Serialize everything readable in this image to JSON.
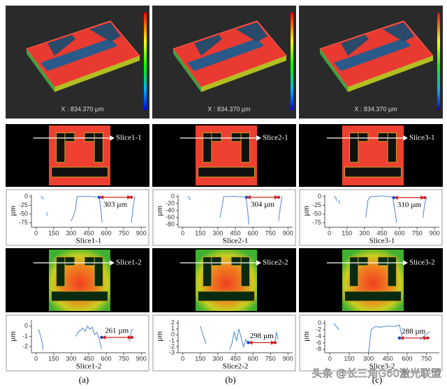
{
  "panels": [
    {
      "label": "(a)",
      "view3d": {
        "x_axis": "X : 834.370 µm"
      },
      "slice1": {
        "label": "Slice1-1"
      },
      "plot1": {
        "ylabel": "µm",
        "xlabel": "Slice1-1",
        "xlim": [
          -40,
          940
        ],
        "ylim": [
          -88,
          6
        ],
        "xticks": [
          0,
          150,
          300,
          450,
          600,
          750,
          900
        ],
        "yticks": [
          0,
          -25,
          -50,
          -75
        ],
        "profile": {
          "x": [
            40,
            55,
            62,
            null,
            90,
            95,
            null,
            300,
            320,
            335,
            350,
            450,
            540,
            555,
            565,
            null,
            815,
            830,
            845
          ],
          "y": [
            0,
            -2,
            -8,
            null,
            -45,
            -55,
            null,
            -70,
            -55,
            -40,
            0,
            1,
            -2,
            -40,
            -75,
            null,
            -75,
            -30,
            0
          ]
        },
        "arrow": {
          "x": [
            540,
            815
          ],
          "y": -2
        },
        "annotation": "303 µm"
      },
      "slice2": {
        "label": "Slice1-2"
      },
      "plot2": {
        "ylabel": "µm",
        "xlabel": "Slice1-2",
        "xlim": [
          -40,
          940
        ],
        "ylim": [
          -2.6,
          0.6
        ],
        "xticks": [
          0,
          150,
          300,
          450,
          600,
          750,
          900
        ],
        "yticks": [
          0,
          -1,
          -2
        ],
        "profile": {
          "x": [
            20,
            35,
            50,
            60,
            null,
            340,
            360,
            380,
            400,
            420,
            440,
            460,
            480,
            500,
            520,
            540,
            560,
            null,
            800,
            815,
            830
          ],
          "y": [
            -0.3,
            -0.8,
            -1.5,
            -2.3,
            null,
            -1.0,
            -0.6,
            -0.4,
            -0.2,
            -0.5,
            0.0,
            -0.3,
            -0.1,
            -0.8,
            -0.6,
            -1.3,
            -2.2,
            null,
            -1.5,
            -0.4,
            -0.3
          ]
        },
        "arrow": {
          "x": [
            560,
            820
          ],
          "y": -1.1
        },
        "annotation": "261 µm"
      }
    },
    {
      "label": "(b)",
      "view3d": {
        "x_axis": "X : 834.370 µm"
      },
      "slice1": {
        "label": "Slice2-1"
      },
      "plot1": {
        "ylabel": "µm",
        "xlabel": "Slice2-1",
        "xlim": [
          -40,
          940
        ],
        "ylim": [
          -88,
          6
        ],
        "xticks": [
          0,
          150,
          300,
          450,
          600,
          750,
          900
        ],
        "yticks": [
          0,
          -20,
          -40,
          -60,
          -80
        ],
        "profile": {
          "x": [
            40,
            55,
            62,
            null,
            320,
            335,
            350,
            450,
            540,
            555,
            565,
            null,
            820,
            835,
            850
          ],
          "y": [
            0,
            -2,
            -10,
            null,
            -60,
            -30,
            0,
            1,
            -2,
            -40,
            -80,
            null,
            -70,
            -30,
            0
          ]
        },
        "arrow": {
          "x": [
            545,
            820
          ],
          "y": -2
        },
        "annotation": "304 µm"
      },
      "slice2": {
        "label": "Slice2-2"
      },
      "plot2": {
        "ylabel": "µm",
        "xlabel": "Slice2-2",
        "xlim": [
          -40,
          940
        ],
        "ylim": [
          -3,
          2.5
        ],
        "xticks": [
          0,
          150,
          300,
          450,
          600,
          750,
          900
        ],
        "yticks": [
          2,
          1,
          0,
          -1,
          -2,
          -3
        ],
        "profile": {
          "x": [
            150,
            165,
            180,
            200,
            null,
            400,
            420,
            440,
            460,
            480,
            500,
            520,
            540,
            560,
            null,
            790,
            800,
            815
          ],
          "y": [
            1.5,
            0.5,
            -0.5,
            -1.5,
            null,
            -2.5,
            -1.5,
            0.5,
            -1,
            1,
            -0.5,
            -2,
            -0.8,
            -1.3,
            null,
            -1.2,
            0.5,
            -0.8
          ]
        },
        "arrow": {
          "x": [
            560,
            790
          ],
          "y": -1.3
        },
        "annotation": "298 µm"
      }
    },
    {
      "label": "(c)",
      "view3d": {
        "x_axis": "X : 834.370 µm"
      },
      "slice1": {
        "label": "Slice3-1"
      },
      "plot1": {
        "ylabel": "µm",
        "xlabel": "Slice3-1",
        "xlim": [
          -40,
          940
        ],
        "ylim": [
          -88,
          6
        ],
        "xticks": [
          0,
          150,
          300,
          450,
          600,
          750,
          900
        ],
        "yticks": [
          0,
          -25,
          -50,
          -75
        ],
        "profile": {
          "x": [
            40,
            55,
            60,
            null,
            80,
            85,
            null,
            310,
            330,
            350,
            450,
            540,
            560,
            575,
            null,
            800,
            815,
            835
          ],
          "y": [
            0,
            -3,
            -12,
            null,
            -10,
            -20,
            null,
            -60,
            -10,
            0,
            2,
            -1,
            -40,
            -75,
            null,
            -60,
            -20,
            0
          ]
        },
        "arrow": {
          "x": [
            550,
            815
          ],
          "y": -3
        },
        "annotation": "310 µm"
      },
      "slice2": {
        "label": "Slice3-2"
      },
      "plot2": {
        "ylabel": "µm",
        "xlabel": "Slice3-2",
        "xlim": [
          -40,
          850
        ],
        "ylim": [
          -9,
          1
        ],
        "xticks": [
          0,
          150,
          300,
          450,
          600,
          750
        ],
        "yticks": [
          0,
          -2,
          -4,
          -6,
          -8
        ],
        "profile": {
          "x": [
            30,
            50,
            70,
            null,
            300,
            320,
            350,
            400,
            450,
            500,
            540,
            560,
            null,
            700,
            730,
            760,
            780
          ],
          "y": [
            0,
            -1,
            -2,
            null,
            -9,
            -2,
            -1,
            -1.2,
            -0.8,
            -1,
            -0.5,
            -4,
            null,
            -5,
            -4,
            -3,
            -2.5
          ]
        },
        "arrow": {
          "x": [
            540,
            760
          ],
          "y": -4.5
        },
        "annotation": "288 µm"
      }
    }
  ],
  "watermark": "头条 @长三角G60激光联盟"
}
